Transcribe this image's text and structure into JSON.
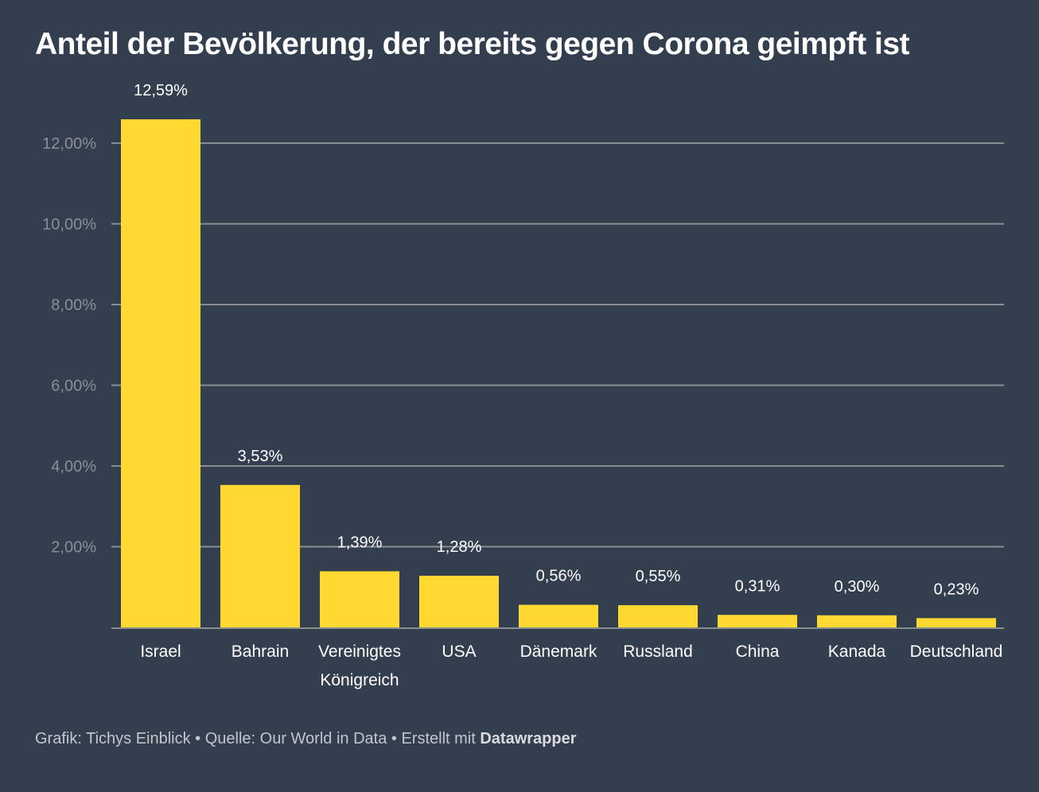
{
  "title": "Anteil der Bevölkerung, der bereits gegen Corona geimpft ist",
  "footer": {
    "prefix": "Grafik: Tichys Einblick • Quelle: Our World in Data • Erstellt mit ",
    "tool": "Datawrapper"
  },
  "colors": {
    "background": "#333e4f",
    "bar": "#ffd932",
    "grid": "#8a8d92",
    "text": "#ffffff",
    "tick": "#8a8f97"
  },
  "chart_data": {
    "type": "bar",
    "title": "Anteil der Bevölkerung, der bereits gegen Corona geimpft ist",
    "xlabel": "",
    "ylabel": "",
    "categories": [
      [
        "Israel"
      ],
      [
        "Bahrain"
      ],
      [
        "Vereinigtes",
        "Königreich"
      ],
      [
        "USA"
      ],
      [
        "Dänemark"
      ],
      [
        "Russland"
      ],
      [
        "China"
      ],
      [
        "Kanada"
      ],
      [
        "Deutschland"
      ]
    ],
    "values": [
      12.59,
      3.53,
      1.39,
      1.28,
      0.56,
      0.55,
      0.31,
      0.3,
      0.23
    ],
    "value_labels": [
      "12,59%",
      "3,53%",
      "1,39%",
      "1,28%",
      "0,56%",
      "0,55%",
      "0,31%",
      "0,30%",
      "0,23%"
    ],
    "yticks": [
      2,
      4,
      6,
      8,
      10,
      12
    ],
    "ytick_labels": [
      "2,00%",
      "4,00%",
      "6,00%",
      "8,00%",
      "10,00%",
      "12,00%"
    ],
    "ylim": [
      0,
      12
    ],
    "grid": true,
    "legend": "none"
  }
}
